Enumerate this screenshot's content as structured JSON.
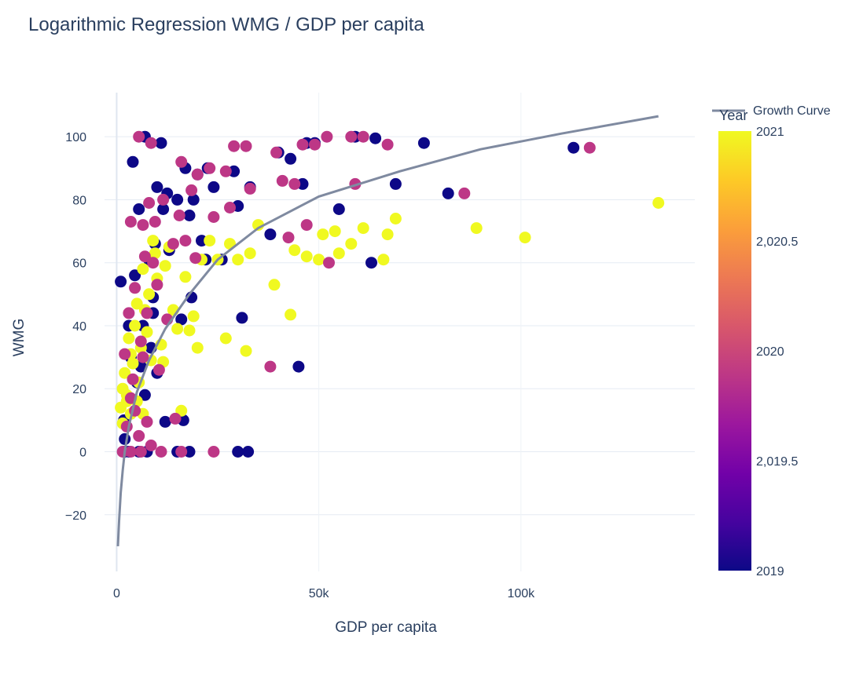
{
  "chart_data": {
    "type": "scatter",
    "title": "Logarithmic Regression WMG / GDP per capita",
    "xlabel": "GDP per capita",
    "ylabel": "WMG",
    "xlim": [
      -3000,
      143000
    ],
    "ylim": [
      -38,
      114
    ],
    "x_ticks": [
      {
        "value": 0,
        "label": "0"
      },
      {
        "value": 50000,
        "label": "50k"
      },
      {
        "value": 100000,
        "label": "100k"
      }
    ],
    "y_ticks": [
      {
        "value": -20,
        "label": "−20"
      },
      {
        "value": 0,
        "label": "0"
      },
      {
        "value": 20,
        "label": "20"
      },
      {
        "value": 40,
        "label": "40"
      },
      {
        "value": 60,
        "label": "60"
      },
      {
        "value": 80,
        "label": "80"
      },
      {
        "value": 100,
        "label": "100"
      }
    ],
    "grid": true,
    "legend": {
      "position": "top-right",
      "entries": [
        {
          "name": "Growth Curve",
          "type": "line",
          "color": "#7f8aa0"
        }
      ]
    },
    "colorbar": {
      "title": "Year",
      "ticks": [
        "2021",
        "2,020.5",
        "2020",
        "2,019.5",
        "2019"
      ],
      "min": 2019,
      "max": 2021,
      "colorscale": [
        "#0d0887",
        "#46039f",
        "#7201a8",
        "#9c179e",
        "#bd3786",
        "#d8576b",
        "#ed7953",
        "#fb9f3a",
        "#fdca26",
        "#f0f921"
      ]
    },
    "growth_curve": {
      "name": "Growth Curve",
      "color": "#7f8aa0",
      "points": [
        [
          300,
          -30
        ],
        [
          600,
          -22
        ],
        [
          1000,
          -13
        ],
        [
          1500,
          -6
        ],
        [
          2000,
          0
        ],
        [
          3000,
          8
        ],
        [
          5000,
          19
        ],
        [
          8000,
          29
        ],
        [
          12000,
          39
        ],
        [
          18000,
          50
        ],
        [
          25000,
          61
        ],
        [
          35000,
          71
        ],
        [
          50000,
          81
        ],
        [
          70000,
          89
        ],
        [
          90000,
          96
        ],
        [
          110000,
          101
        ],
        [
          134000,
          106.5
        ]
      ],
      "note_hidden": false
    },
    "series": [
      {
        "name": "2019",
        "color": "#0d0887",
        "points": [
          [
            2000,
            0
          ],
          [
            3000,
            0
          ],
          [
            5500,
            0
          ],
          [
            7500,
            0
          ],
          [
            15000,
            0
          ],
          [
            18000,
            0
          ],
          [
            30000,
            0
          ],
          [
            32500,
            0
          ],
          [
            1000,
            54
          ],
          [
            1800,
            10
          ],
          [
            3500,
            30
          ],
          [
            4500,
            56
          ],
          [
            5500,
            77
          ],
          [
            7000,
            100
          ],
          [
            8500,
            33
          ],
          [
            9000,
            44
          ],
          [
            9500,
            66
          ],
          [
            10000,
            84
          ],
          [
            11000,
            98
          ],
          [
            11500,
            77
          ],
          [
            12000,
            9.5
          ],
          [
            13000,
            64
          ],
          [
            15000,
            80
          ],
          [
            16000,
            42
          ],
          [
            16500,
            10
          ],
          [
            17000,
            90
          ],
          [
            18000,
            75
          ],
          [
            18500,
            49
          ],
          [
            19000,
            80
          ],
          [
            20000,
            88
          ],
          [
            21000,
            67
          ],
          [
            22000,
            61
          ],
          [
            22500,
            90
          ],
          [
            24000,
            84
          ],
          [
            26000,
            61
          ],
          [
            29000,
            89
          ],
          [
            30000,
            78
          ],
          [
            31000,
            42.5
          ],
          [
            33000,
            84
          ],
          [
            38000,
            69
          ],
          [
            40000,
            95
          ],
          [
            43000,
            93
          ],
          [
            45000,
            27
          ],
          [
            46000,
            85
          ],
          [
            47000,
            98
          ],
          [
            49000,
            98
          ],
          [
            55000,
            77
          ],
          [
            59000,
            100
          ],
          [
            63000,
            60
          ],
          [
            64000,
            99.5
          ],
          [
            69000,
            85
          ],
          [
            76000,
            98
          ],
          [
            82000,
            82
          ],
          [
            113000,
            96.5
          ],
          [
            4000,
            92
          ],
          [
            3000,
            40
          ],
          [
            6000,
            27
          ],
          [
            8000,
            61
          ],
          [
            9000,
            49
          ],
          [
            10000,
            25
          ],
          [
            2000,
            4
          ],
          [
            5000,
            22
          ],
          [
            7000,
            18
          ],
          [
            12500,
            82
          ],
          [
            6500,
            40
          ]
        ]
      },
      {
        "name": "2020",
        "color": "#bd3786",
        "points": [
          [
            1500,
            0
          ],
          [
            3500,
            0
          ],
          [
            6000,
            0
          ],
          [
            11000,
            0
          ],
          [
            16000,
            0
          ],
          [
            24000,
            0
          ],
          [
            2000,
            31
          ],
          [
            3000,
            44
          ],
          [
            3500,
            73
          ],
          [
            4500,
            52
          ],
          [
            5500,
            100
          ],
          [
            6000,
            35
          ],
          [
            6500,
            72
          ],
          [
            7000,
            62
          ],
          [
            7500,
            9.5
          ],
          [
            8000,
            79
          ],
          [
            8500,
            98
          ],
          [
            9500,
            73
          ],
          [
            10500,
            26
          ],
          [
            11500,
            80
          ],
          [
            12500,
            42
          ],
          [
            14000,
            66
          ],
          [
            14500,
            10.5
          ],
          [
            15500,
            75
          ],
          [
            16000,
            92
          ],
          [
            17000,
            67
          ],
          [
            18500,
            83
          ],
          [
            19500,
            61.5
          ],
          [
            20000,
            88
          ],
          [
            23000,
            90
          ],
          [
            24000,
            74.5
          ],
          [
            27000,
            89
          ],
          [
            28000,
            77.5
          ],
          [
            29000,
            97
          ],
          [
            32000,
            97
          ],
          [
            33000,
            83.5
          ],
          [
            38000,
            27
          ],
          [
            39500,
            95
          ],
          [
            41000,
            86
          ],
          [
            42500,
            68
          ],
          [
            44000,
            85
          ],
          [
            46000,
            97.5
          ],
          [
            47000,
            72
          ],
          [
            49000,
            97.5
          ],
          [
            52000,
            100
          ],
          [
            52500,
            60
          ],
          [
            58000,
            100
          ],
          [
            59000,
            85
          ],
          [
            61000,
            100
          ],
          [
            67000,
            97.5
          ],
          [
            86000,
            82
          ],
          [
            117000,
            96.5
          ],
          [
            3500,
            17
          ],
          [
            4000,
            23
          ],
          [
            5500,
            5
          ],
          [
            6500,
            30
          ],
          [
            8500,
            2
          ],
          [
            10000,
            53
          ],
          [
            2500,
            8
          ],
          [
            4500,
            13
          ],
          [
            7500,
            44
          ],
          [
            9000,
            60
          ]
        ]
      },
      {
        "name": "2021",
        "color": "#f0f921",
        "points": [
          [
            1000,
            14
          ],
          [
            1500,
            20
          ],
          [
            2000,
            25
          ],
          [
            2500,
            16
          ],
          [
            3000,
            36
          ],
          [
            3500,
            12
          ],
          [
            4000,
            28
          ],
          [
            4500,
            40
          ],
          [
            5000,
            47
          ],
          [
            5500,
            22
          ],
          [
            6000,
            33
          ],
          [
            6500,
            58
          ],
          [
            7000,
            45
          ],
          [
            7500,
            38
          ],
          [
            8000,
            50
          ],
          [
            8500,
            29
          ],
          [
            9000,
            67
          ],
          [
            9500,
            63
          ],
          [
            10000,
            55
          ],
          [
            11000,
            34
          ],
          [
            11500,
            28.5
          ],
          [
            12000,
            59
          ],
          [
            13000,
            65
          ],
          [
            14000,
            45
          ],
          [
            15000,
            39
          ],
          [
            16000,
            13
          ],
          [
            17000,
            55.5
          ],
          [
            18000,
            38.5
          ],
          [
            19000,
            43
          ],
          [
            20000,
            33
          ],
          [
            21000,
            61
          ],
          [
            23000,
            67
          ],
          [
            25000,
            61
          ],
          [
            27000,
            36
          ],
          [
            28000,
            66
          ],
          [
            30000,
            61
          ],
          [
            32000,
            32
          ],
          [
            33000,
            63
          ],
          [
            35000,
            72
          ],
          [
            39000,
            53
          ],
          [
            43000,
            43.5
          ],
          [
            44000,
            64
          ],
          [
            47000,
            62
          ],
          [
            50000,
            61
          ],
          [
            51000,
            69
          ],
          [
            54000,
            70
          ],
          [
            55000,
            63
          ],
          [
            58000,
            66
          ],
          [
            61000,
            71
          ],
          [
            66000,
            61
          ],
          [
            67000,
            69
          ],
          [
            69000,
            74
          ],
          [
            89000,
            71
          ],
          [
            101000,
            68
          ],
          [
            134000,
            79
          ],
          [
            1500,
            9
          ],
          [
            2500,
            18
          ],
          [
            3500,
            31
          ],
          [
            5000,
            16
          ],
          [
            6500,
            12
          ]
        ]
      }
    ]
  }
}
